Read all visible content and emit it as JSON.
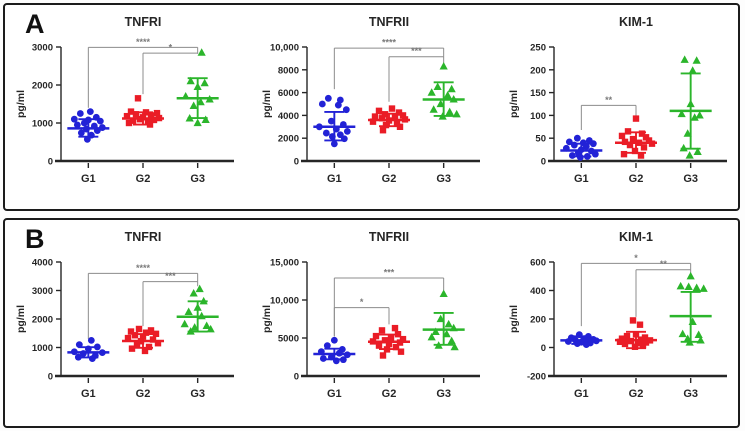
{
  "panels": [
    {
      "label": "A"
    },
    {
      "label": "B"
    }
  ],
  "colors": {
    "axis": "#262626",
    "bracket": "#8c8c8c",
    "g1_blue": "#2222d6",
    "g2_red": "#ea1c26",
    "g3_green": "#2bb52b",
    "panel_border": "#1c1c1c"
  },
  "chart_data": [
    {
      "panel": "A",
      "type": "scatter",
      "title": "TNFRI",
      "ylabel": "pg/ml",
      "ylim": [
        0,
        3000
      ],
      "yticks": [
        0,
        1000,
        2000,
        3000
      ],
      "ytick_labels": [
        "0",
        "1000",
        "2000",
        "3000"
      ],
      "categories": [
        "G1",
        "G2",
        "G3"
      ],
      "groups": [
        {
          "name": "G1",
          "marker": "circle",
          "color": "#2222d6",
          "mean": 860,
          "err_low": 640,
          "err_high": 1100,
          "values": [
            1300,
            1250,
            1150,
            1100,
            1080,
            1050,
            1000,
            950,
            920,
            880,
            840,
            800,
            740,
            680,
            570
          ],
          "jitter": [
            2,
            -8,
            8,
            -14,
            0,
            12,
            -4,
            -11,
            6,
            14,
            -2,
            9,
            -7,
            3,
            -1
          ]
        },
        {
          "name": "G2",
          "marker": "square",
          "color": "#ea1c26",
          "mean": 1120,
          "err_low": 960,
          "err_high": 1280,
          "values": [
            1650,
            1300,
            1280,
            1260,
            1230,
            1200,
            1180,
            1150,
            1130,
            1100,
            1080,
            1060,
            1030,
            1000,
            960
          ],
          "jitter": [
            -5,
            -12,
            3,
            14,
            -7,
            8,
            -16,
            0,
            16,
            -3,
            11,
            -10,
            5,
            -14,
            7
          ]
        },
        {
          "name": "G3",
          "marker": "triangle",
          "color": "#2bb52b",
          "mean": 1650,
          "err_low": 1130,
          "err_high": 2180,
          "values": [
            2850,
            2100,
            2050,
            1950,
            1700,
            1620,
            1550,
            1450,
            1120,
            1080,
            1000
          ],
          "jitter": [
            4,
            -7,
            7,
            0,
            -12,
            12,
            3,
            -4,
            -8,
            8,
            0
          ]
        }
      ],
      "brackets": [
        {
          "from": 0,
          "to": 2,
          "y": 2990,
          "label": "****",
          "drop_from": 1400,
          "drop_to": 2840
        },
        {
          "from": 1,
          "to": 2,
          "y": 2840,
          "label": "*",
          "drop_from": 1760,
          "drop_to": 2820
        }
      ]
    },
    {
      "panel": "A",
      "type": "scatter",
      "title": "TNFRII",
      "ylabel": "pg/ml",
      "ylim": [
        0,
        10000
      ],
      "yticks": [
        0,
        2000,
        4000,
        6000,
        8000,
        10000
      ],
      "ytick_labels": [
        "0",
        "2000",
        "4000",
        "6000",
        "8000",
        "10,000"
      ],
      "categories": [
        "G1",
        "G2",
        "G3"
      ],
      "groups": [
        {
          "name": "G1",
          "marker": "circle",
          "color": "#2222d6",
          "mean": 3000,
          "err_low": 1800,
          "err_high": 4300,
          "values": [
            5500,
            5350,
            5000,
            4900,
            4500,
            3500,
            3200,
            3000,
            2800,
            2600,
            2450,
            2300,
            2150,
            1950,
            1500
          ],
          "jitter": [
            -6,
            6,
            -12,
            4,
            12,
            -3,
            9,
            -15,
            2,
            13,
            -8,
            6,
            -2,
            10,
            0
          ]
        },
        {
          "name": "G2",
          "marker": "square",
          "color": "#ea1c26",
          "mean": 3600,
          "err_low": 3050,
          "err_high": 4150,
          "values": [
            4600,
            4400,
            4250,
            4100,
            4000,
            3900,
            3850,
            3750,
            3650,
            3550,
            3450,
            3300,
            3150,
            3000,
            2700
          ],
          "jitter": [
            3,
            -10,
            10,
            -4,
            14,
            -14,
            6,
            -7,
            16,
            0,
            -16,
            8,
            -3,
            11,
            -6
          ]
        },
        {
          "name": "G3",
          "marker": "triangle",
          "color": "#2bb52b",
          "mean": 5400,
          "err_low": 3950,
          "err_high": 6900,
          "values": [
            8300,
            6500,
            6300,
            6000,
            5750,
            5400,
            5000,
            4500,
            4300,
            4100,
            3900
          ],
          "jitter": [
            0,
            -6,
            8,
            -12,
            4,
            10,
            -3,
            -10,
            6,
            13,
            -1
          ]
        }
      ],
      "brackets": [
        {
          "from": 0,
          "to": 2,
          "y": 9900,
          "label": "****",
          "drop_from": 6300,
          "drop_to": 9150
        },
        {
          "from": 1,
          "to": 2,
          "y": 9150,
          "label": "***",
          "drop_from": 5200,
          "drop_to": 8600
        }
      ]
    },
    {
      "panel": "A",
      "type": "scatter",
      "title": "KIM-1",
      "ylabel": "pg/ml",
      "ylim": [
        0,
        250
      ],
      "yticks": [
        0,
        50,
        100,
        150,
        200,
        250
      ],
      "ytick_labels": [
        "0",
        "50",
        "100",
        "150",
        "200",
        "250"
      ],
      "categories": [
        "G1",
        "G2",
        "G3"
      ],
      "groups": [
        {
          "name": "G1",
          "marker": "circle",
          "color": "#2222d6",
          "mean": 23,
          "err_low": 10,
          "err_high": 38,
          "values": [
            50,
            45,
            42,
            40,
            38,
            35,
            32,
            28,
            25,
            22,
            18,
            15,
            12,
            10,
            8
          ],
          "jitter": [
            -4,
            8,
            -12,
            2,
            12,
            -7,
            5,
            -15,
            0,
            10,
            -3,
            14,
            -9,
            6,
            -1
          ]
        },
        {
          "name": "G2",
          "marker": "square",
          "color": "#ea1c26",
          "mean": 40,
          "err_low": 18,
          "err_high": 63,
          "values": [
            93,
            65,
            60,
            55,
            52,
            48,
            45,
            42,
            40,
            38,
            35,
            30,
            22,
            15,
            12
          ],
          "jitter": [
            0,
            -8,
            6,
            -14,
            10,
            -3,
            13,
            -11,
            3,
            16,
            -6,
            8,
            -1,
            -12,
            5
          ]
        },
        {
          "name": "G3",
          "marker": "triangle",
          "color": "#2bb52b",
          "mean": 110,
          "err_low": 27,
          "err_high": 192,
          "values": [
            222,
            220,
            198,
            125,
            103,
            100,
            95,
            60,
            28,
            20,
            12
          ],
          "jitter": [
            -6,
            6,
            2,
            0,
            -9,
            9,
            4,
            -3,
            -7,
            7,
            -1
          ]
        }
      ],
      "brackets": [
        {
          "from": 0,
          "to": 1,
          "y": 122,
          "label": "**",
          "drop_from": 68,
          "drop_to": 97
        }
      ]
    },
    {
      "panel": "B",
      "type": "scatter",
      "title": "TNFRI",
      "ylabel": "pg/ml",
      "ylim": [
        0,
        4000
      ],
      "yticks": [
        0,
        1000,
        2000,
        3000,
        4000
      ],
      "ytick_labels": [
        "0",
        "1000",
        "2000",
        "3000",
        "4000"
      ],
      "categories": [
        "G1",
        "G2",
        "G3"
      ],
      "groups": [
        {
          "name": "G1",
          "marker": "circle",
          "color": "#2222d6",
          "mean": 830,
          "err_low": 650,
          "err_high": 1010,
          "values": [
            1250,
            1100,
            1020,
            950,
            850,
            820,
            790,
            720,
            660,
            610
          ],
          "jitter": [
            3,
            -9,
            9,
            0,
            -14,
            14,
            -5,
            7,
            -10,
            4
          ]
        },
        {
          "name": "G2",
          "marker": "square",
          "color": "#ea1c26",
          "mean": 1230,
          "err_low": 990,
          "err_high": 1470,
          "values": [
            1650,
            1600,
            1560,
            1520,
            1480,
            1430,
            1380,
            1330,
            1280,
            1220,
            1150,
            1080,
            1020,
            960,
            880
          ],
          "jitter": [
            -4,
            8,
            -12,
            3,
            13,
            -8,
            0,
            -15,
            10,
            -2,
            15,
            -6,
            6,
            -11,
            2
          ]
        },
        {
          "name": "G3",
          "marker": "triangle",
          "color": "#2bb52b",
          "mean": 2080,
          "err_low": 1560,
          "err_high": 2620,
          "values": [
            3050,
            2900,
            2620,
            2400,
            2250,
            2100,
            1820,
            1760,
            1700,
            1640,
            1560
          ],
          "jitter": [
            2,
            -4,
            6,
            0,
            -9,
            4,
            -13,
            9,
            -3,
            13,
            -7
          ]
        }
      ],
      "brackets": [
        {
          "from": 0,
          "to": 2,
          "y": 3600,
          "label": "****",
          "drop_from": 1300,
          "drop_to": 3310
        },
        {
          "from": 1,
          "to": 2,
          "y": 3310,
          "label": "***",
          "drop_from": 1750,
          "drop_to": 3150
        }
      ]
    },
    {
      "panel": "B",
      "type": "scatter",
      "title": "TNFRII",
      "ylabel": "pg/ml",
      "ylim": [
        0,
        15000
      ],
      "yticks": [
        0,
        5000,
        10000,
        15000
      ],
      "ytick_labels": [
        "0",
        "5000",
        "10,000",
        "15,000"
      ],
      "categories": [
        "G1",
        "G2",
        "G3"
      ],
      "groups": [
        {
          "name": "G1",
          "marker": "circle",
          "color": "#2222d6",
          "mean": 2900,
          "err_low": 2200,
          "err_high": 3600,
          "values": [
            4700,
            4000,
            3500,
            3200,
            3000,
            2800,
            2500,
            2300,
            2150,
            2000
          ],
          "jitter": [
            0,
            -7,
            8,
            -13,
            5,
            13,
            -3,
            -11,
            9,
            2
          ]
        },
        {
          "name": "G2",
          "marker": "square",
          "color": "#ea1c26",
          "mean": 4500,
          "err_low": 3550,
          "err_high": 5450,
          "values": [
            6300,
            6000,
            5500,
            5250,
            5000,
            4850,
            4700,
            4550,
            4400,
            4200,
            4000,
            3800,
            3500,
            3200,
            2700
          ],
          "jitter": [
            6,
            -7,
            9,
            -13,
            2,
            14,
            -4,
            -16,
            11,
            0,
            -10,
            7,
            -2,
            12,
            -6
          ]
        },
        {
          "name": "G3",
          "marker": "triangle",
          "color": "#2bb52b",
          "mean": 6100,
          "err_low": 4100,
          "err_high": 8300,
          "values": [
            10800,
            7500,
            6800,
            6300,
            5800,
            5500,
            5100,
            4600,
            4000,
            3800
          ],
          "jitter": [
            0,
            -3,
            5,
            10,
            -8,
            3,
            -12,
            8,
            -5,
            11
          ]
        }
      ],
      "brackets": [
        {
          "from": 0,
          "to": 2,
          "y": 12900,
          "label": "***",
          "drop_from": 5200,
          "drop_to": 11300
        },
        {
          "from": 0,
          "to": 1,
          "y": 9000,
          "label": "*",
          "drop_from": 5200,
          "drop_to": 6800
        }
      ]
    },
    {
      "panel": "B",
      "type": "scatter",
      "title": "KIM-1",
      "ylabel": "pg/ml",
      "ylim": [
        -200,
        600
      ],
      "yticks": [
        -200,
        0,
        200,
        400,
        600
      ],
      "ytick_labels": [
        "-200",
        "0",
        "200",
        "400",
        "600"
      ],
      "categories": [
        "G1",
        "G2",
        "G3"
      ],
      "groups": [
        {
          "name": "G1",
          "marker": "circle",
          "color": "#2222d6",
          "mean": 50,
          "err_low": 25,
          "err_high": 78,
          "values": [
            90,
            78,
            68,
            62,
            57,
            52,
            47,
            42,
            37,
            32,
            27,
            20
          ],
          "jitter": [
            -2,
            7,
            -10,
            3,
            12,
            -6,
            15,
            -13,
            0,
            9,
            -4,
            5
          ]
        },
        {
          "name": "G2",
          "marker": "square",
          "color": "#ea1c26",
          "mean": 52,
          "err_low": -5,
          "err_high": 110,
          "values": [
            190,
            160,
            92,
            80,
            70,
            62,
            55,
            50,
            45,
            40,
            35,
            30,
            25,
            15,
            5
          ],
          "jitter": [
            -3,
            4,
            0,
            -9,
            9,
            -14,
            5,
            14,
            -5,
            -16,
            10,
            2,
            -11,
            7,
            -1
          ]
        },
        {
          "name": "G3",
          "marker": "triangle",
          "color": "#2bb52b",
          "mean": 220,
          "err_low": 40,
          "err_high": 390,
          "values": [
            500,
            430,
            425,
            418,
            412,
            180,
            95,
            88,
            60,
            50,
            35
          ],
          "jitter": [
            0,
            -10,
            -2,
            6,
            13,
            2,
            -8,
            8,
            -3,
            10,
            -1
          ]
        }
      ],
      "brackets": [
        {
          "from": 0,
          "to": 2,
          "y": 590,
          "label": "*",
          "drop_from": 150,
          "drop_to": 546
        },
        {
          "from": 1,
          "to": 2,
          "y": 546,
          "label": "**",
          "drop_from": 215,
          "drop_to": 520
        }
      ]
    }
  ]
}
